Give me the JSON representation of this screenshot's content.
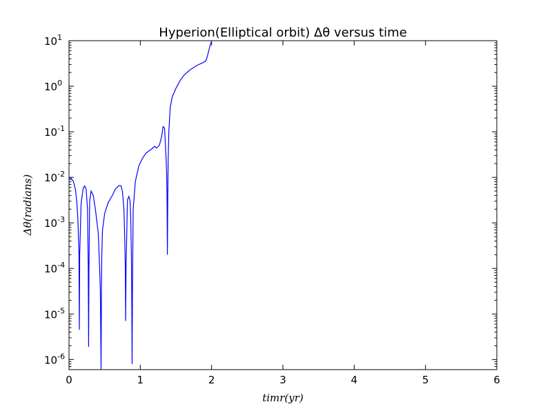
{
  "chart_data": {
    "type": "line",
    "title": "Hyperion(Elliptical orbit) Δθ versus time",
    "xlabel": "timr(yr)",
    "ylabel": "Δθ(radians)",
    "xlim": [
      0,
      6
    ],
    "ylim": [
      6e-07,
      10
    ],
    "yscale": "log",
    "grid": false,
    "x_ticks": [
      {
        "value": 0,
        "label": "0"
      },
      {
        "value": 1,
        "label": "1"
      },
      {
        "value": 2,
        "label": "2"
      },
      {
        "value": 3,
        "label": "3"
      },
      {
        "value": 4,
        "label": "4"
      },
      {
        "value": 5,
        "label": "5"
      },
      {
        "value": 6,
        "label": "6"
      }
    ],
    "y_ticks": [
      {
        "value": 1e-06,
        "base": "10",
        "exp": "-6"
      },
      {
        "value": 1e-05,
        "base": "10",
        "exp": "-5"
      },
      {
        "value": 0.0001,
        "base": "10",
        "exp": "-4"
      },
      {
        "value": 0.001,
        "base": "10",
        "exp": "-3"
      },
      {
        "value": 0.01,
        "base": "10",
        "exp": "-2"
      },
      {
        "value": 0.1,
        "base": "10",
        "exp": "-1"
      },
      {
        "value": 1,
        "base": "10",
        "exp": "0"
      },
      {
        "value": 10,
        "base": "10",
        "exp": "1"
      }
    ],
    "series": [
      {
        "color": "#0000ff",
        "x": [
          0.0,
          0.03,
          0.06,
          0.09,
          0.11,
          0.125,
          0.14,
          0.145,
          0.15,
          0.17,
          0.2,
          0.22,
          0.24,
          0.26,
          0.27,
          0.275,
          0.28,
          0.29,
          0.31,
          0.34,
          0.37,
          0.39,
          0.41,
          0.43,
          0.44,
          0.45,
          0.455,
          0.46,
          0.47,
          0.5,
          0.55,
          0.6,
          0.65,
          0.7,
          0.73,
          0.75,
          0.77,
          0.78,
          0.79,
          0.795,
          0.8,
          0.82,
          0.84,
          0.855,
          0.865,
          0.875,
          0.88,
          0.885,
          0.89,
          0.9,
          0.93,
          0.98,
          1.03,
          1.08,
          1.12,
          1.16,
          1.2,
          1.23,
          1.25,
          1.27,
          1.3,
          1.32,
          1.34,
          1.35,
          1.36,
          1.37,
          1.375,
          1.38,
          1.385,
          1.39,
          1.4,
          1.42,
          1.45,
          1.5,
          1.56,
          1.62,
          1.7,
          1.8,
          1.88,
          1.92,
          1.94,
          1.96,
          1.98,
          2.0,
          2.01
        ],
        "y": [
          0.0098,
          0.0095,
          0.0082,
          0.0055,
          0.0028,
          0.0012,
          0.0002,
          4.5e-06,
          0.0002,
          0.0027,
          0.0058,
          0.0065,
          0.0055,
          0.002,
          0.0001,
          1.9e-06,
          0.0001,
          0.003,
          0.005,
          0.004,
          0.002,
          0.0011,
          0.0006,
          0.0001,
          3e-05,
          6e-07,
          3e-05,
          0.0002,
          0.0007,
          0.0016,
          0.0028,
          0.0038,
          0.0055,
          0.0066,
          0.0065,
          0.0048,
          0.002,
          0.0006,
          0.0001,
          7e-06,
          0.0001,
          0.0032,
          0.0038,
          0.0031,
          0.0015,
          0.0002,
          3e-05,
          8e-07,
          3e-05,
          0.002,
          0.008,
          0.018,
          0.026,
          0.034,
          0.038,
          0.042,
          0.048,
          0.044,
          0.047,
          0.052,
          0.08,
          0.13,
          0.12,
          0.06,
          0.03,
          0.012,
          0.003,
          0.0002,
          0.003,
          0.02,
          0.1,
          0.35,
          0.6,
          0.9,
          1.35,
          1.8,
          2.3,
          2.9,
          3.3,
          3.6,
          4.5,
          6.0,
          8.0,
          9.8,
          10.5
        ]
      }
    ]
  }
}
